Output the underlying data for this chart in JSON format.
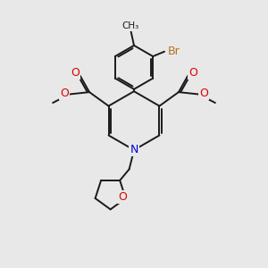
{
  "bg_color": "#e8e8e8",
  "bond_color": "#1a1a1a",
  "bond_width": 1.4,
  "N_color": "#0000dd",
  "O_color": "#dd0000",
  "Br_color": "#b87020",
  "figsize": [
    3.0,
    3.0
  ],
  "dpi": 100,
  "xlim": [
    0,
    10
  ],
  "ylim": [
    0,
    10
  ]
}
